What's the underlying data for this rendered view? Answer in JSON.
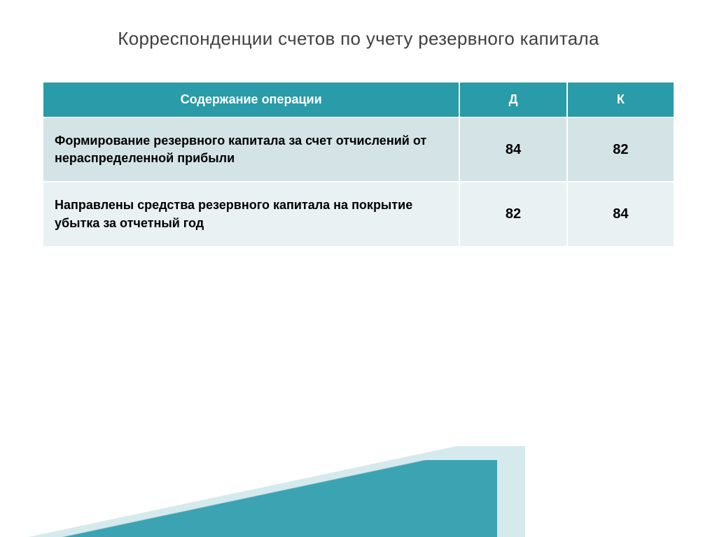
{
  "slide": {
    "title": "Корреспонденции счетов по учету резервного капитала",
    "title_color": "#404040",
    "title_fontsize": 26
  },
  "table": {
    "header_bg": "#2a9ba8",
    "header_color": "#ffffff",
    "row_odd_bg": "#d4e3e6",
    "row_even_bg": "#eaf1f3",
    "columns": [
      {
        "label": "Содержание операции",
        "width": "66%",
        "align": "left"
      },
      {
        "label": "Д",
        "width": "17%",
        "align": "center"
      },
      {
        "label": "К",
        "width": "17%",
        "align": "center"
      }
    ],
    "rows": [
      {
        "operation": "Формирование резервного капитала за счет отчислений от нераспределенной прибыли",
        "debit": "84",
        "credit": "82"
      },
      {
        "operation": "Направлены средства резервного капитала на покрытие убытка за отчетный год",
        "debit": "82",
        "credit": "84"
      }
    ]
  },
  "decoration": {
    "triangle_front_color": "#2f9dad",
    "triangle_back_color": "rgba(180, 215, 222, 0.55)"
  }
}
